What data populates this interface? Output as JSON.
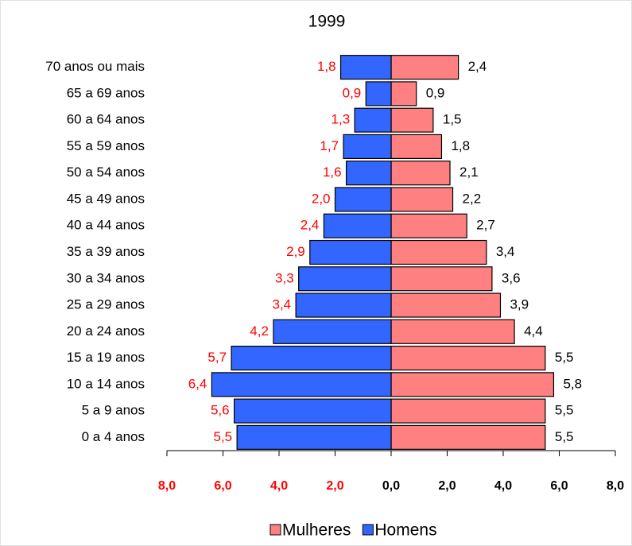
{
  "chart_data": {
    "type": "pyramid",
    "title": "1999",
    "categories": [
      "70 anos ou mais",
      "65 a 69 anos",
      "60 a 64 anos",
      "55 a 59 anos",
      "50 a 54 anos",
      "45 a 49 anos",
      "40 a 44 anos",
      "35 a 39 anos",
      "30 a 34 anos",
      "25 a 29 anos",
      "20 a 24 anos",
      "15 a 19 anos",
      "10 a 14 anos",
      "5 a 9 anos",
      "0 a 4 anos"
    ],
    "series": [
      {
        "name": "Mulheres",
        "color": "#ff8080",
        "side": "right",
        "label_color": "#000000",
        "values": [
          2.4,
          0.9,
          1.5,
          1.8,
          2.1,
          2.2,
          2.7,
          3.4,
          3.6,
          3.9,
          4.4,
          5.5,
          5.8,
          5.5,
          5.5
        ],
        "value_labels": [
          "2,4",
          "0,9",
          "1,5",
          "1,8",
          "2,1",
          "2,2",
          "2,7",
          "3,4",
          "3,6",
          "3,9",
          "4,4",
          "5,5",
          "5,8",
          "5,5",
          "5,5"
        ]
      },
      {
        "name": "Homens",
        "color": "#3366ff",
        "side": "left",
        "label_color": "#ff0000",
        "values": [
          1.8,
          0.9,
          1.3,
          1.7,
          1.6,
          2.0,
          2.4,
          2.9,
          3.3,
          3.4,
          4.2,
          5.7,
          6.4,
          5.6,
          5.5
        ],
        "value_labels": [
          "1,8",
          "0,9",
          "1,3",
          "1,7",
          "1,6",
          "2,0",
          "2,4",
          "2,9",
          "3,3",
          "3,4",
          "4,2",
          "5,7",
          "6,4",
          "5,6",
          "5,5"
        ]
      }
    ],
    "xlim": [
      -8,
      8
    ],
    "xticks": [
      {
        "value": -8,
        "label": "8,0"
      },
      {
        "value": -6,
        "label": "6,0"
      },
      {
        "value": -4,
        "label": "4,0"
      },
      {
        "value": -2,
        "label": "2,0"
      },
      {
        "value": 0,
        "label": "0,0"
      },
      {
        "value": 2,
        "label": "2,0"
      },
      {
        "value": 4,
        "label": "4,0"
      },
      {
        "value": 6,
        "label": "6,0"
      },
      {
        "value": 8,
        "label": "8,0"
      }
    ]
  }
}
